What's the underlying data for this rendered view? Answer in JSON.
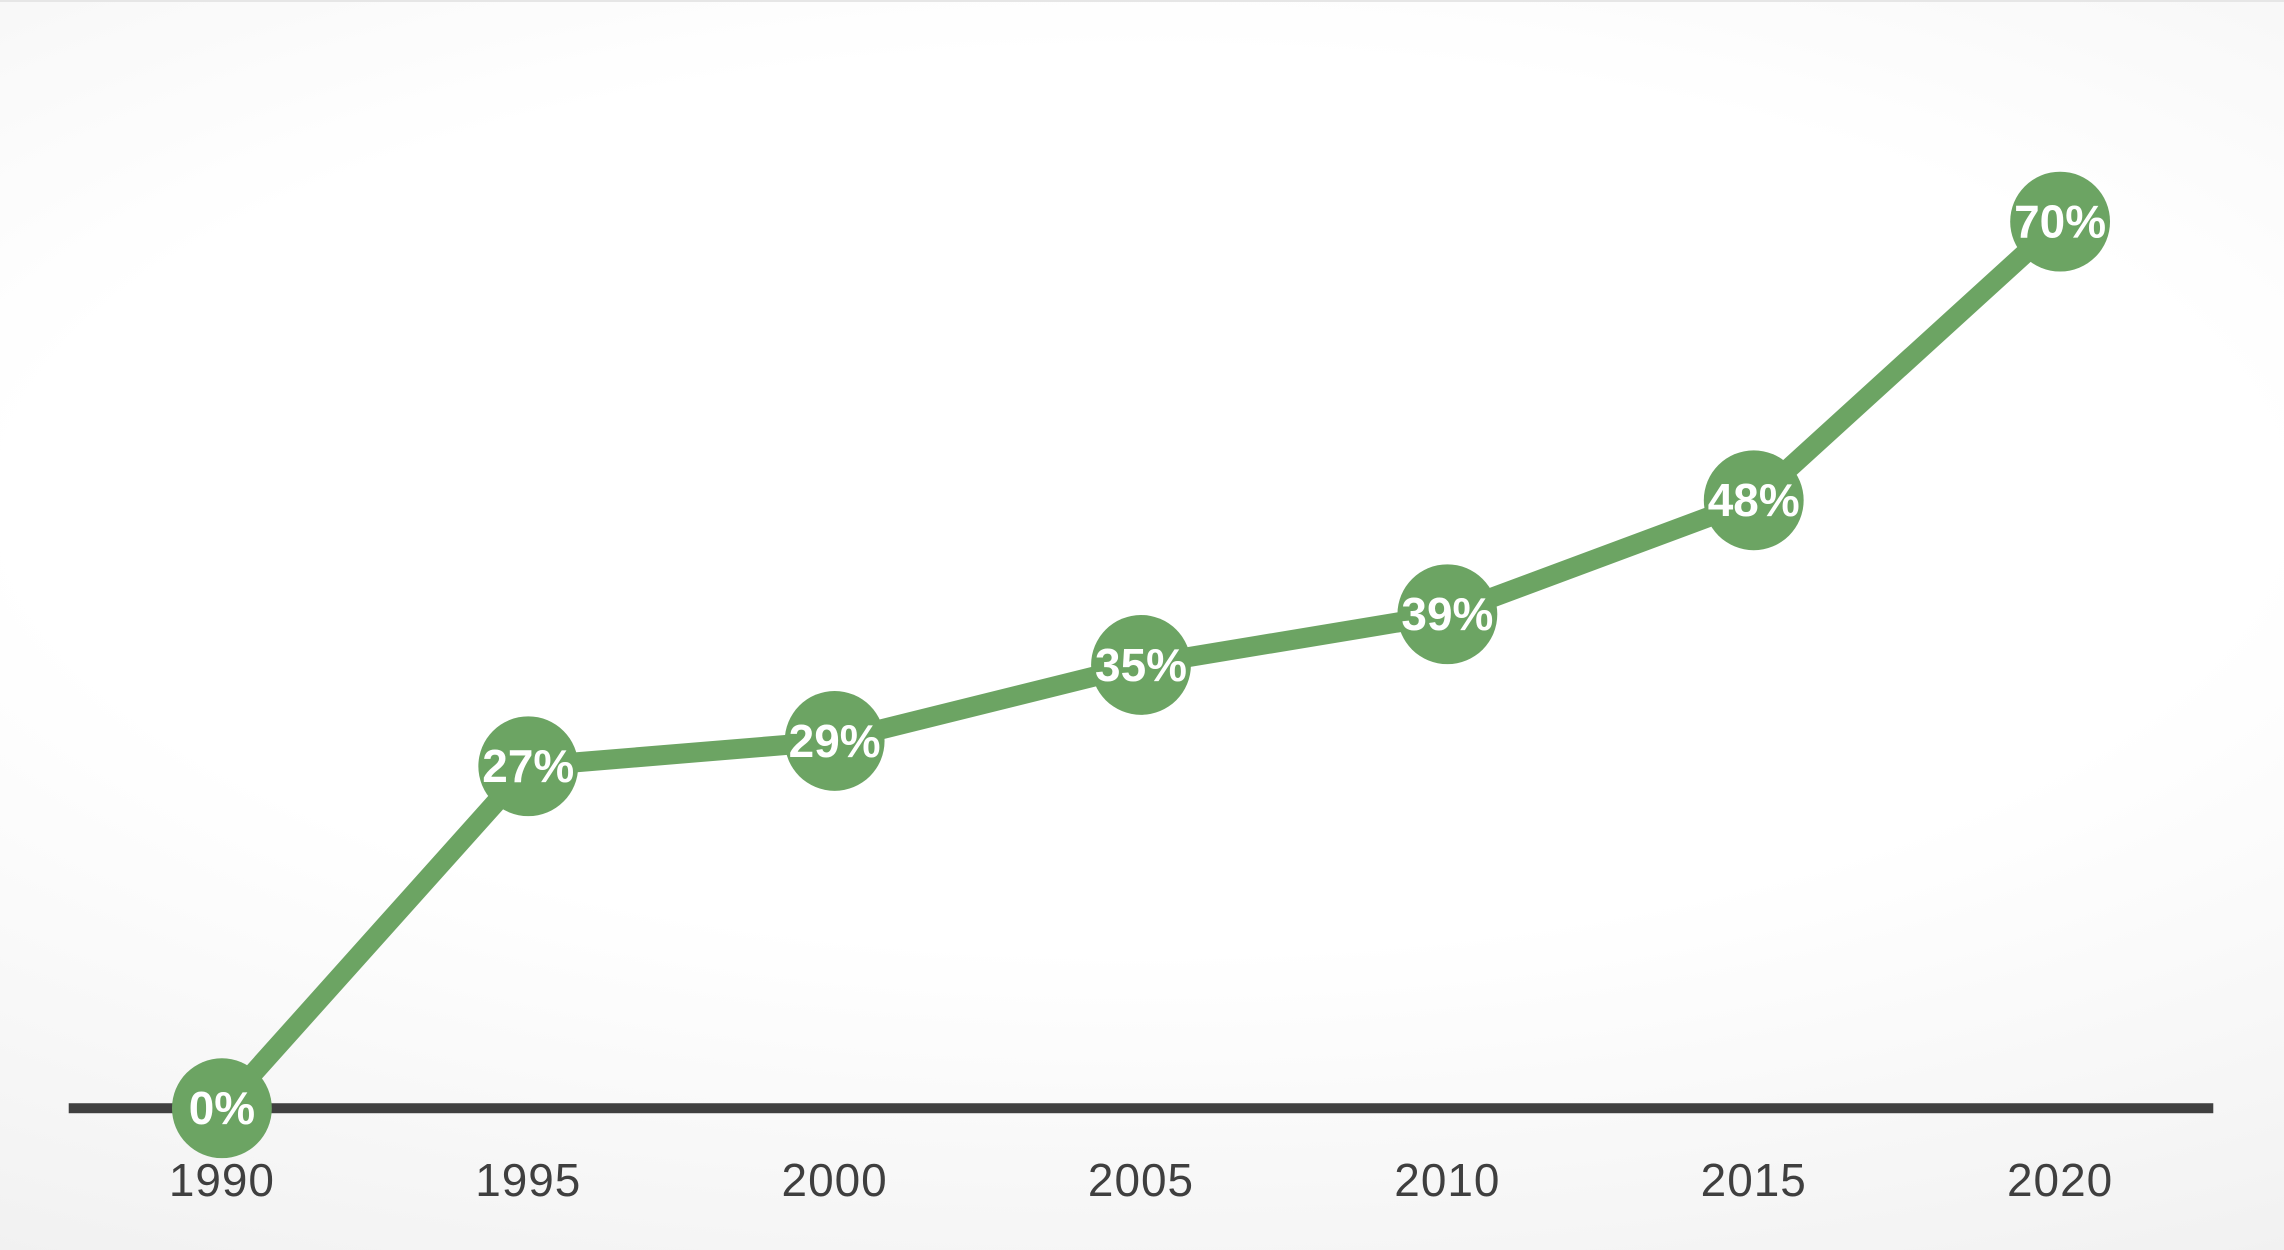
{
  "chart_data": {
    "type": "line",
    "categories": [
      "1990",
      "1995",
      "2000",
      "2005",
      "2010",
      "2015",
      "2020"
    ],
    "values": [
      0,
      27,
      29,
      35,
      39,
      48,
      70
    ],
    "point_labels": [
      "0%",
      "27%",
      "29%",
      "35%",
      "39%",
      "48%",
      "70%"
    ],
    "title": "",
    "xlabel": "",
    "ylabel": "",
    "ylim": [
      0,
      75
    ],
    "grid": false,
    "legend": "none",
    "y_axis_visible": false,
    "x_axis_visible": true,
    "line_color": "#6CA463",
    "marker_color": "#6CA463",
    "marker_label_color": "#ffffff",
    "axis_line_color": "#404040",
    "tick_label_color": "#3F3F3F"
  }
}
